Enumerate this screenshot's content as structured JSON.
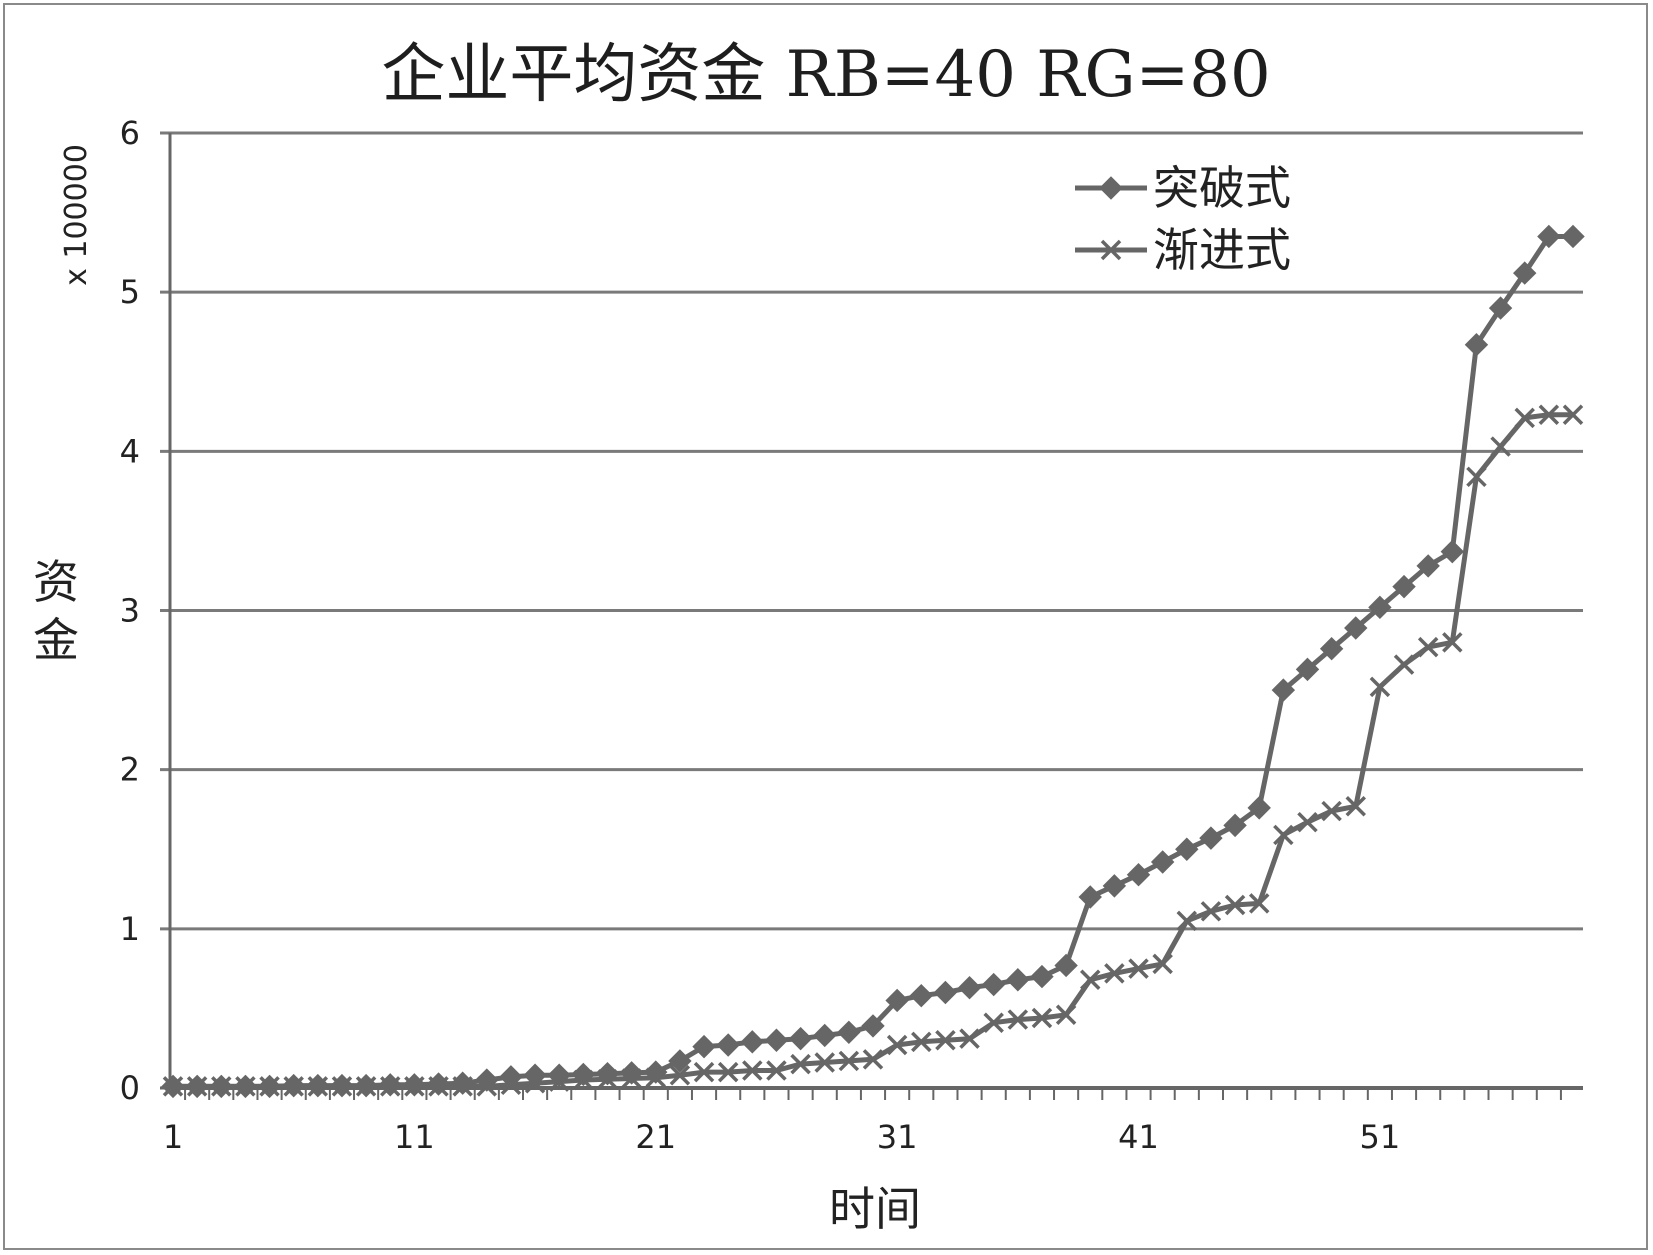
{
  "chart_data": {
    "type": "line",
    "title": "企业平均资金 RB=40 RG=80",
    "xlabel": "时间",
    "ylabel": "资金",
    "y_scale_note": "x 100000",
    "xlim": [
      1,
      59
    ],
    "ylim": [
      0,
      6
    ],
    "x_ticks": [
      1,
      11,
      21,
      31,
      41,
      51
    ],
    "y_ticks": [
      0,
      1,
      2,
      3,
      4,
      5,
      6
    ],
    "grid": true,
    "legend_position": "top-right",
    "x": [
      1,
      2,
      3,
      4,
      5,
      6,
      7,
      8,
      9,
      10,
      11,
      12,
      13,
      14,
      15,
      16,
      17,
      18,
      19,
      20,
      21,
      22,
      23,
      24,
      25,
      26,
      27,
      28,
      29,
      30,
      31,
      32,
      33,
      34,
      35,
      36,
      37,
      38,
      39,
      40,
      41,
      42,
      43,
      44,
      45,
      46,
      47,
      48,
      49,
      50,
      51,
      52,
      53,
      54,
      55,
      56,
      57,
      58,
      59
    ],
    "series": [
      {
        "name": "突破式",
        "marker": "diamond",
        "values": [
          0.01,
          0.01,
          0.01,
          0.01,
          0.01,
          0.015,
          0.015,
          0.015,
          0.015,
          0.02,
          0.02,
          0.025,
          0.03,
          0.05,
          0.07,
          0.08,
          0.08,
          0.085,
          0.09,
          0.095,
          0.1,
          0.17,
          0.26,
          0.27,
          0.29,
          0.3,
          0.31,
          0.33,
          0.35,
          0.39,
          0.55,
          0.58,
          0.6,
          0.63,
          0.65,
          0.68,
          0.7,
          0.77,
          1.2,
          1.27,
          1.34,
          1.42,
          1.5,
          1.57,
          1.65,
          1.76,
          2.5,
          2.63,
          2.76,
          2.89,
          3.02,
          3.15,
          3.28,
          3.37,
          4.67,
          4.9,
          5.12,
          5.35,
          5.35
        ]
      },
      {
        "name": "渐进式",
        "marker": "x",
        "values": [
          0.01,
          0.01,
          0.01,
          0.01,
          0.01,
          0.01,
          0.01,
          0.01,
          0.01,
          0.01,
          0.01,
          0.01,
          0.01,
          0.01,
          0.02,
          0.03,
          0.04,
          0.05,
          0.055,
          0.06,
          0.065,
          0.08,
          0.1,
          0.1,
          0.11,
          0.11,
          0.15,
          0.16,
          0.17,
          0.18,
          0.27,
          0.29,
          0.3,
          0.31,
          0.41,
          0.43,
          0.44,
          0.46,
          0.68,
          0.72,
          0.75,
          0.78,
          1.05,
          1.11,
          1.15,
          1.16,
          1.59,
          1.67,
          1.74,
          1.77,
          2.52,
          2.66,
          2.77,
          2.8,
          3.84,
          4.03,
          4.21,
          4.23,
          4.23
        ]
      }
    ]
  },
  "colors": {
    "line": "#666666",
    "grid": "#7a7a7a",
    "axis": "#666666",
    "text": "#222222",
    "frame": "#8a8a8a"
  }
}
